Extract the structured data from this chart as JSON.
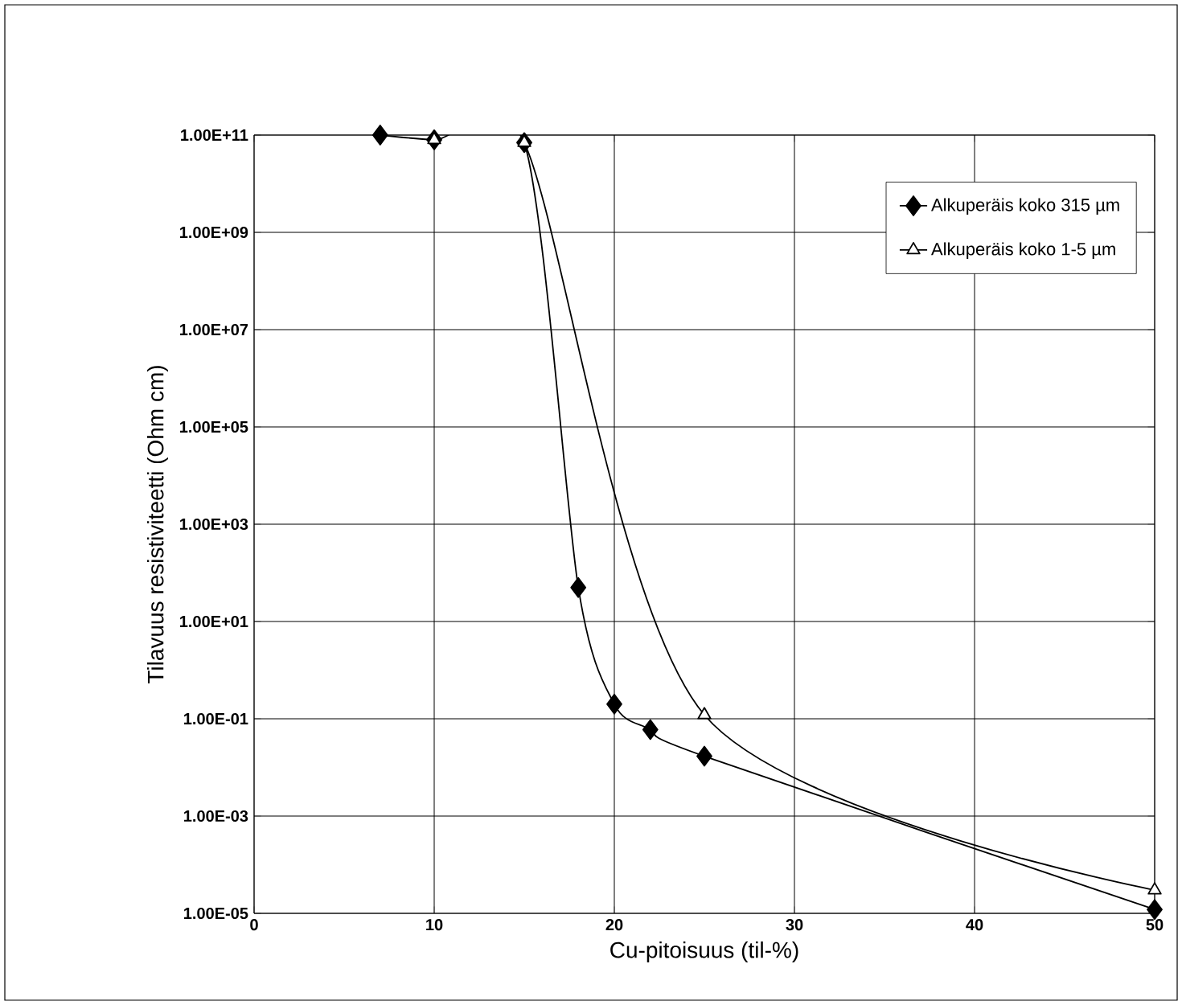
{
  "chart_data": {
    "type": "line",
    "xlabel": "Cu-pitoisuus (til-%)",
    "ylabel": "Tilavuus resistiviteetti (Ohm cm)",
    "log": "y",
    "grid": true,
    "legend": "top right",
    "line_style": "solid",
    "xlim": [
      0,
      50
    ],
    "xticks": [
      0,
      10,
      20,
      30,
      40,
      50
    ],
    "ylim": [
      1e-05,
      100000000000.0
    ],
    "yticks": [
      {
        "value": 1e-05,
        "label": "1.00E-05"
      },
      {
        "value": 0.001,
        "label": "1.00E-03"
      },
      {
        "value": 0.1,
        "label": "1.00E-01"
      },
      {
        "value": 10,
        "label": "1.00E+01"
      },
      {
        "value": 1000,
        "label": "1.00E+03"
      },
      {
        "value": 100000,
        "label": "1.00E+05"
      },
      {
        "value": 10000000,
        "label": "1.00E+07"
      },
      {
        "value": 1000000000,
        "label": "1.00E+09"
      },
      {
        "value": 100000000000,
        "label": "1.00E+11"
      }
    ],
    "series": [
      {
        "name": "Alkuperäis koko 315 µm",
        "color": "#000000",
        "marker": "diamond",
        "x": [
          7,
          10,
          15,
          18,
          20,
          22,
          25,
          50
        ],
        "values": [
          100000000000.0,
          80000000000.0,
          70000000000.0,
          50,
          0.2,
          0.06,
          0.017,
          1.2e-05
        ]
      },
      {
        "name": "Alkuperäis koko 1-5 µm",
        "color": "#000000",
        "marker": "triangle",
        "x": [
          10,
          15,
          25,
          50
        ],
        "values": [
          80000000000.0,
          70000000000.0,
          0.12,
          3e-05
        ]
      }
    ]
  }
}
